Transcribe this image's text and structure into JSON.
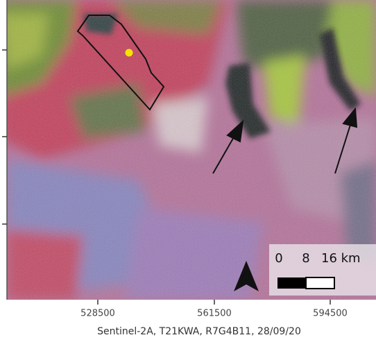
{
  "map": {
    "x_tick_labels": [
      528500,
      561500,
      594500
    ],
    "scale_bar": {
      "labels": [
        "0",
        "8",
        "16 km"
      ]
    },
    "caption": "Sentinel-2A, T21KWA, R7G4B11, 28/09/20"
  }
}
